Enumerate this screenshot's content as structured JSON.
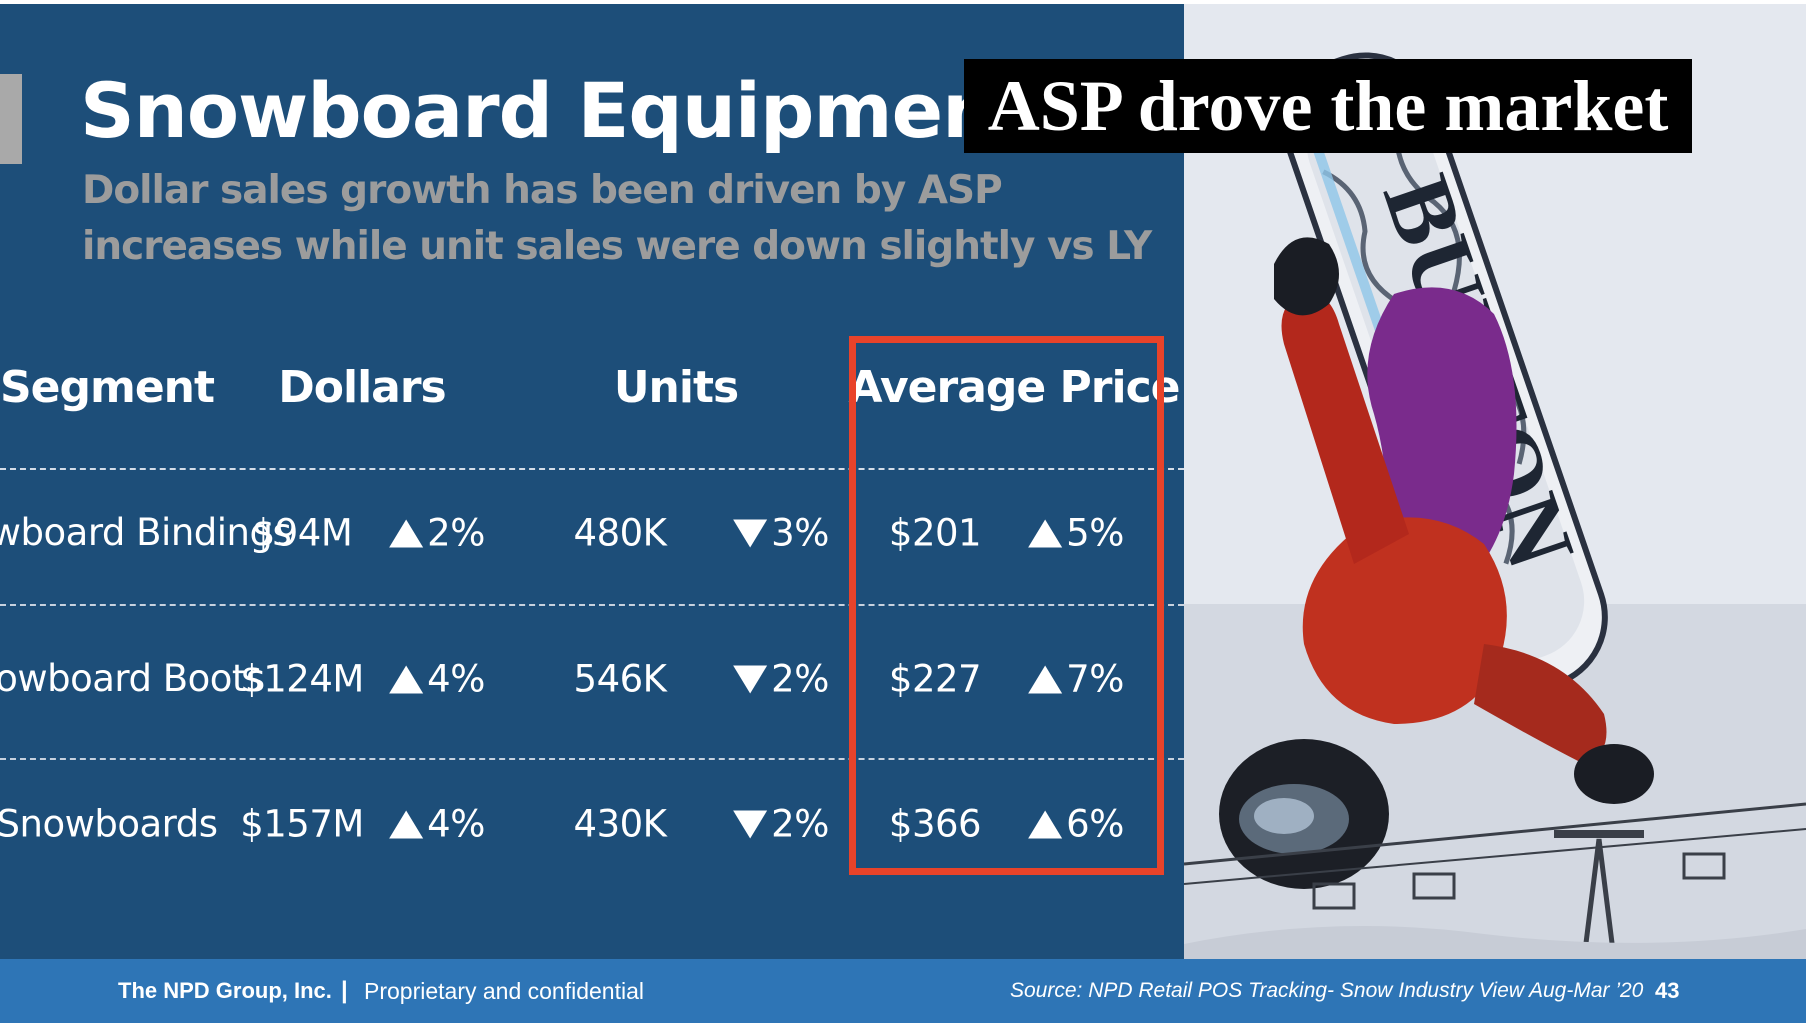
{
  "slide": {
    "title": "Snowboard Equipment",
    "subtitle_line1": "Dollar sales growth has been driven by ASP",
    "subtitle_line2": "increases while unit sales were down slightly vs LY",
    "callout": "ASP drove the market"
  },
  "photo": {
    "board_text": "BURTON",
    "alt_description_icon": "snowboarder-photo"
  },
  "table": {
    "headers": {
      "segment": "Segment",
      "dollars": "Dollars",
      "units": "Units",
      "avg_price": "Average Price"
    },
    "rows": [
      {
        "segment": "Snowboard Bindings",
        "dollars": "$94M",
        "dollars_dir": "up",
        "dollars_chg": "2%",
        "units": "480K",
        "units_dir": "down",
        "units_chg": "3%",
        "price": "$201",
        "price_dir": "up",
        "price_chg": "5%"
      },
      {
        "segment": "Snowboard Boots",
        "dollars": "$124M",
        "dollars_dir": "up",
        "dollars_chg": "4%",
        "units": "546K",
        "units_dir": "down",
        "units_chg": "2%",
        "price": "$227",
        "price_dir": "up",
        "price_chg": "7%"
      },
      {
        "segment": "Snowboards",
        "dollars": "$157M",
        "dollars_dir": "up",
        "dollars_chg": "4%",
        "units": "430K",
        "units_dir": "down",
        "units_chg": "2%",
        "price": "$366",
        "price_dir": "up",
        "price_chg": "6%"
      }
    ]
  },
  "footer": {
    "company": "The NPD Group, Inc.",
    "separator": "|",
    "confidential": "Proprietary and confidential",
    "source": "Source: NPD Retail POS Tracking- Snow Industry View Aug-Mar ’20",
    "page_number": "43"
  },
  "colors": {
    "panel": "#1d4e79",
    "footer": "#2e75b6",
    "highlight": "#e8432a",
    "subtitle": "#9c9c9c"
  }
}
